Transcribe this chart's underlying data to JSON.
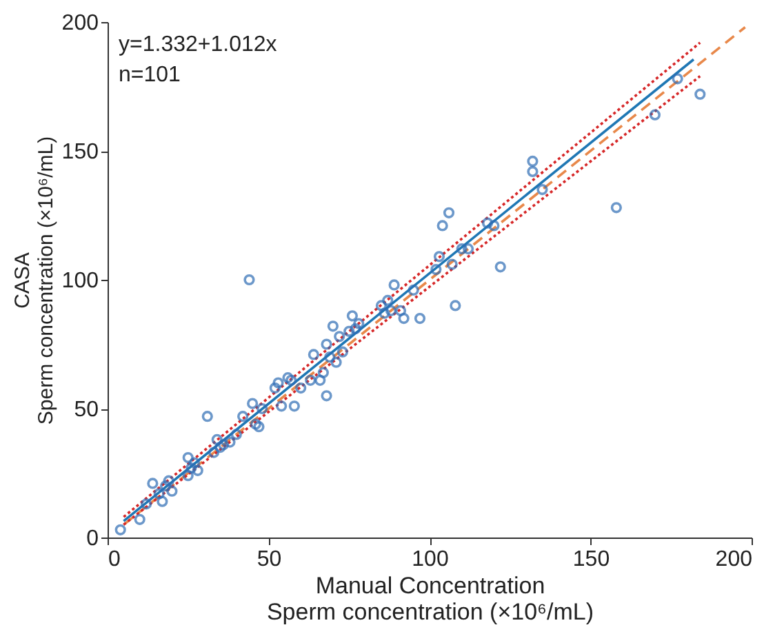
{
  "chart_data": {
    "type": "scatter",
    "xlabel": "Manual Concentration\nSperm concentration (×10⁶/mL)",
    "ylabel": "CASA\nSperm concentration (×10⁶/mL)",
    "annotations": [
      "y=1.332+1.012x",
      "n=101"
    ],
    "xlim": [
      0,
      200
    ],
    "ylim": [
      0,
      200
    ],
    "xticks": [
      0,
      50,
      100,
      150,
      200
    ],
    "yticks": [
      0,
      50,
      100,
      150,
      200
    ],
    "grid": false,
    "legend": false,
    "marker": "none",
    "series": [
      {
        "type": "line",
        "color": "#e8884a",
        "line_style": "dashed",
        "x": [
          5,
          198
        ],
        "values": [
          5,
          198
        ]
      },
      {
        "type": "line",
        "color": "#d62728",
        "line_style": "dotted",
        "x": [
          5,
          184
        ],
        "values": [
          8,
          192
        ]
      },
      {
        "type": "line",
        "color": "#d62728",
        "line_style": "dotted",
        "x": [
          5,
          184
        ],
        "values": [
          5,
          179
        ]
      },
      {
        "type": "line",
        "color": "#1f77b4",
        "line_style": "solid",
        "x": [
          5,
          182
        ],
        "values": [
          6.4,
          185.5
        ]
      },
      {
        "type": "scatter",
        "color": "#2f6db5",
        "marker": "circle",
        "x": [
          4,
          10,
          12,
          14,
          16,
          17,
          18,
          19,
          20,
          25,
          25,
          26,
          27,
          28,
          31,
          33,
          34,
          35,
          36,
          38,
          40,
          42,
          45,
          46,
          47,
          48,
          52,
          53,
          54,
          56,
          57,
          58,
          60,
          63,
          64,
          66,
          67,
          68,
          68,
          69,
          70,
          71,
          72,
          73,
          75,
          76,
          77,
          78,
          85,
          86,
          87,
          88,
          89,
          91,
          92,
          95,
          97,
          102,
          103,
          104,
          106,
          107,
          108,
          110,
          112,
          118,
          120,
          122,
          132,
          132,
          135,
          158,
          170,
          177,
          184,
          44
        ],
        "values": [
          3,
          7,
          13,
          21,
          17,
          14,
          20,
          22,
          18,
          24,
          31,
          27,
          29,
          26,
          47,
          33,
          38,
          35,
          36,
          37,
          40,
          47,
          52,
          44,
          43,
          50,
          58,
          60,
          51,
          62,
          61,
          51,
          58,
          61,
          71,
          61,
          64,
          55,
          75,
          70,
          82,
          68,
          78,
          72,
          80,
          86,
          81,
          83,
          90,
          87,
          92,
          88,
          98,
          88,
          85,
          96,
          85,
          104,
          109,
          121,
          126,
          106,
          90,
          112,
          112,
          122,
          121,
          105,
          146,
          142,
          135,
          128,
          164,
          178,
          172,
          100
        ]
      }
    ]
  }
}
